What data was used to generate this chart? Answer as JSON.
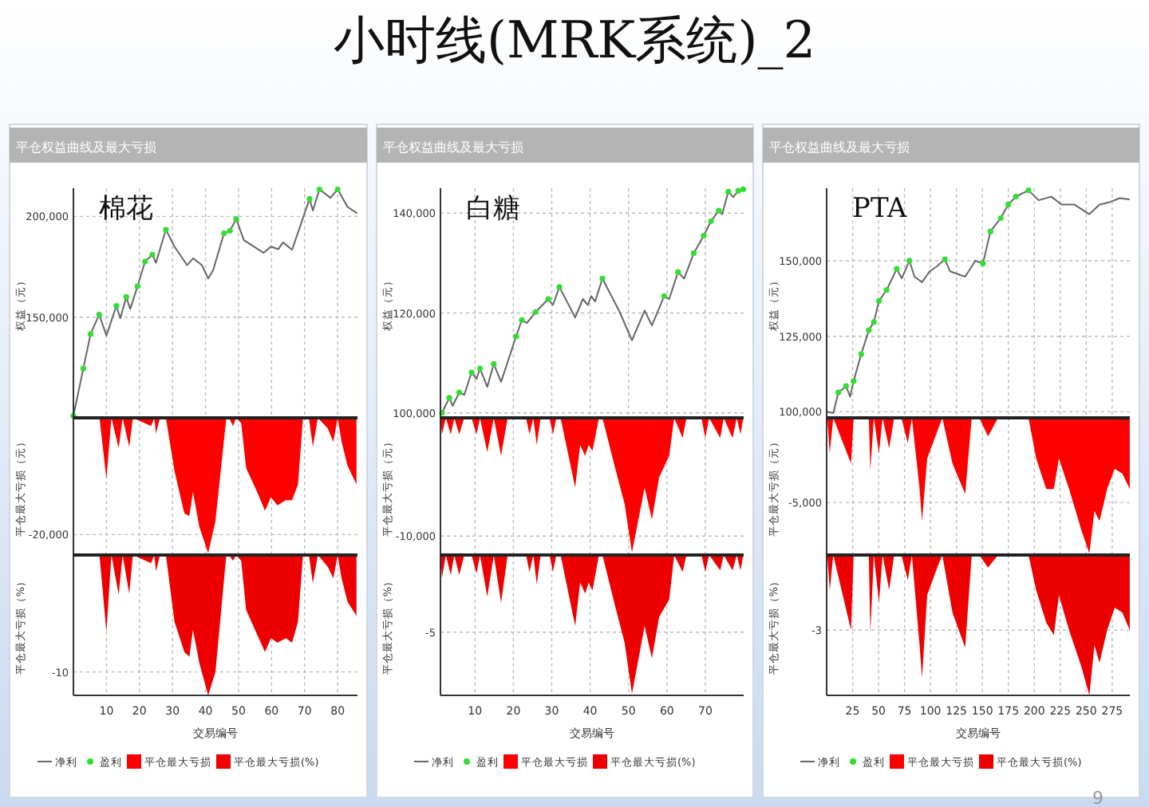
{
  "chart_data": [
    {
      "type": "line",
      "title": "平仓权益曲线及最大亏损",
      "subtitle": "棉花",
      "ylabel": "权益（元）",
      "legend": "bottom",
      "annotations": [
        "小时线(MRK系统)_2"
      ],
      "xlim": [
        0,
        86
      ],
      "xticks": [
        10,
        20,
        30,
        40,
        50,
        60,
        70,
        80
      ],
      "ylim": [
        100000,
        214000
      ],
      "yticks": [
        {
          "value": 150000,
          "label": "150,000"
        },
        {
          "value": 200000,
          "label": "200,000"
        }
      ],
      "grid": true,
      "tick_labels": "y",
      "series": [
        {
          "name": "净利",
          "color": "#666666",
          "x": [
            0,
            3,
            5.2,
            7.8,
            10,
            13,
            14.2,
            16,
            17.2,
            19.4,
            21.7,
            23.9,
            25,
            28,
            30.6,
            34.4,
            36.3,
            38.9,
            40.8,
            42.3,
            45.6,
            47.4,
            49.3,
            51.6,
            57.6,
            59.8,
            62,
            63.5,
            66.2,
            71.5,
            72.5,
            74.5,
            77.8,
            80,
            83,
            85.7
          ],
          "values": [
            101000,
            124500,
            141600,
            151300,
            140800,
            155600,
            149500,
            160000,
            154000,
            165300,
            177600,
            181000,
            177000,
            193400,
            185000,
            175800,
            179200,
            175800,
            169200,
            173200,
            191600,
            192900,
            198700,
            188200,
            181900,
            185000,
            183700,
            187100,
            183400,
            208700,
            202900,
            213400,
            209200,
            213400,
            204700,
            201800
          ]
        },
        {
          "name": "盈利",
          "type": "scatter",
          "color": "#33dd33",
          "x": [
            0,
            3,
            5.2,
            7.8,
            13,
            16,
            19.4,
            21.7,
            23.9,
            28,
            45.6,
            47.4,
            49.3,
            71.5,
            74.5,
            80
          ],
          "values": [
            101000,
            124500,
            141600,
            151300,
            155600,
            160000,
            165300,
            177600,
            181000,
            193400,
            191600,
            192900,
            198700,
            208700,
            213400,
            213400
          ]
        }
      ]
    },
    {
      "type": "area",
      "ylabel": "平仓最大亏损（元）",
      "legend": "bottom",
      "xlim": [
        0,
        86
      ],
      "xticks": [
        10,
        20,
        30,
        40,
        50,
        60,
        70,
        80
      ],
      "ylim": [
        -23500,
        0
      ],
      "yticks": [
        {
          "value": -20000,
          "label": "-20,000"
        }
      ],
      "grid": true,
      "tick_labels": "y",
      "series": [
        {
          "name": "平仓最大亏损",
          "color": "#ff0000",
          "x": [
            0,
            7.9,
            10,
            11.5,
            13.7,
            14.9,
            16.9,
            18,
            23.5,
            24.5,
            25,
            26.2,
            28,
            30.6,
            33.6,
            35.1,
            36.2,
            38.1,
            40.8,
            43,
            46.3,
            47.1,
            48.3,
            49.3,
            50.8,
            52.3,
            55.3,
            58,
            59.8,
            61.8,
            64.3,
            66.2,
            68,
            69.5,
            71.3,
            72.5,
            74,
            77,
            78.7,
            80,
            81.2,
            83,
            85.7
          ],
          "values": [
            0,
            0,
            -10500,
            0,
            -5200,
            0,
            -5000,
            0,
            -1400,
            0,
            -2700,
            0,
            0,
            -9100,
            -16400,
            -16800,
            -12700,
            -18600,
            -23200,
            -17700,
            0,
            0,
            -1400,
            0,
            -900,
            -8600,
            -12300,
            -15900,
            -13600,
            -15000,
            -14100,
            -14100,
            -11400,
            0,
            0,
            -5000,
            0,
            -1800,
            -4100,
            0,
            -4100,
            -8200,
            -11400
          ]
        }
      ]
    },
    {
      "type": "area",
      "ylabel": "平仓最大亏损（%）",
      "xlabel": "交易编号",
      "legend": "bottom",
      "xlim": [
        0,
        86
      ],
      "xticks": [
        10,
        20,
        30,
        40,
        50,
        60,
        70,
        80
      ],
      "ylim": [
        -12,
        0
      ],
      "yticks": [
        -10
      ],
      "grid": true,
      "series": [
        {
          "name": "平仓最大亏损(%)",
          "color": "#ee0000",
          "x": [
            0,
            7.9,
            10,
            11.5,
            13.7,
            14.9,
            16.9,
            18,
            23.5,
            24.5,
            25,
            26.2,
            28,
            30.6,
            33.6,
            35.1,
            36.2,
            38.1,
            40.8,
            43,
            46.3,
            47.1,
            48.3,
            49.3,
            50.8,
            52.3,
            55.3,
            58,
            59.8,
            61.8,
            64.3,
            66.2,
            68,
            69.5,
            71.3,
            72.5,
            74,
            77,
            78.7,
            80,
            81.2,
            83,
            85.7
          ],
          "values": [
            0,
            0,
            -6.6,
            0,
            -3.4,
            0,
            -3.3,
            0,
            -0.7,
            0,
            -1.4,
            0,
            0,
            -5.7,
            -8.3,
            -8.7,
            -6.4,
            -9.2,
            -12,
            -10,
            0,
            0,
            -0.5,
            0,
            -0.5,
            -4.7,
            -6.6,
            -8.3,
            -7.1,
            -7.5,
            -7.1,
            -7.5,
            -5.7,
            0,
            0,
            -2.4,
            0,
            -1,
            -2,
            0,
            -2,
            -4,
            -5.2
          ]
        }
      ]
    },
    {
      "type": "line",
      "title": "平仓权益曲线及最大亏损",
      "subtitle": "白糖",
      "ylabel": "权益（元）",
      "legend": "bottom",
      "xlim": [
        1,
        80
      ],
      "xticks": [
        10,
        20,
        30,
        40,
        50,
        60,
        70
      ],
      "ylim": [
        99000,
        145000
      ],
      "yticks": [
        {
          "value": 100000,
          "label": "100,000"
        },
        {
          "value": 120000,
          "label": "120,000"
        },
        {
          "value": 140000,
          "label": "140,000"
        }
      ],
      "grid": true,
      "tick_labels": "y",
      "series": [
        {
          "name": "净利",
          "color": "#666666",
          "x": [
            1.4,
            3.3,
            4.2,
            5.9,
            7.2,
            9.1,
            10.4,
            11.3,
            13.2,
            14.9,
            16.8,
            20.7,
            22.2,
            23.5,
            25.8,
            29.1,
            30.3,
            32,
            36.1,
            38.1,
            39.4,
            40.3,
            41.3,
            43.2,
            47.7,
            50.9,
            54.2,
            56.1,
            59.3,
            60.6,
            62.9,
            64.5,
            67,
            69.6,
            71.5,
            73.5,
            74.4,
            76,
            77.3,
            78.6,
            79.9
          ],
          "values": [
            100000,
            103000,
            101400,
            104100,
            103600,
            108100,
            106800,
            108900,
            105200,
            109800,
            106200,
            115300,
            118600,
            118000,
            120200,
            122800,
            121600,
            125200,
            119100,
            122800,
            121600,
            123400,
            122300,
            126900,
            120200,
            114500,
            120500,
            117500,
            123400,
            122800,
            128200,
            126900,
            132000,
            135500,
            138400,
            140500,
            139800,
            144300,
            143200,
            144500,
            144800
          ]
        },
        {
          "name": "盈利",
          "type": "scatter",
          "color": "#33dd33",
          "x": [
            1.4,
            3.3,
            5.9,
            9.1,
            11.3,
            14.9,
            20.7,
            22.2,
            25.8,
            29.1,
            32,
            43.2,
            59.3,
            62.9,
            67,
            69.6,
            71.5,
            73.5,
            76,
            78.6,
            79.9
          ],
          "values": [
            100000,
            103000,
            104100,
            108100,
            108900,
            109800,
            115300,
            118600,
            120200,
            122800,
            125200,
            126900,
            123400,
            128200,
            132000,
            135500,
            138400,
            140500,
            144300,
            144500,
            144800
          ]
        }
      ]
    },
    {
      "type": "area",
      "ylabel": "平仓最大亏损（元）",
      "legend": "bottom",
      "xlim": [
        1,
        80
      ],
      "xticks": [
        10,
        20,
        30,
        40,
        50,
        60,
        70
      ],
      "ylim": [
        -11600,
        0
      ],
      "yticks": [
        {
          "value": -10000,
          "label": "-10,000"
        }
      ],
      "grid": true,
      "tick_labels": "y",
      "series": [
        {
          "name": "平仓最大亏损",
          "color": "#ff0000",
          "x": [
            1,
            1.4,
            2.4,
            3.7,
            4.6,
            5.9,
            7.2,
            9.1,
            10.4,
            11.3,
            13.2,
            14.9,
            16.8,
            18.5,
            23.3,
            24.2,
            25.2,
            26.1,
            27.1,
            29.4,
            30.3,
            31.2,
            32.3,
            36.1,
            37.4,
            38.7,
            39.6,
            40.6,
            42.3,
            43.2,
            46.4,
            49,
            50.9,
            54.2,
            56.1,
            58,
            60.6,
            61.9,
            64.1,
            65.1,
            69,
            70,
            71,
            73.9,
            74.8,
            77.1,
            78.2,
            79.2,
            79.9
          ],
          "values": [
            0,
            -1400,
            0,
            -1400,
            0,
            -1400,
            0,
            0,
            -1400,
            0,
            -2900,
            0,
            -3200,
            0,
            0,
            -1400,
            0,
            -2300,
            0,
            0,
            -1400,
            0,
            0,
            -5900,
            -2300,
            -3200,
            -2300,
            -2800,
            0,
            0,
            -4100,
            -7300,
            -11400,
            -5900,
            -8600,
            -5000,
            -3200,
            0,
            -1700,
            0,
            0,
            -1700,
            0,
            -1700,
            0,
            -1700,
            0,
            -1400,
            0
          ]
        }
      ]
    },
    {
      "type": "area",
      "ylabel": "平仓最大亏损（%）",
      "xlabel": "交易编号",
      "legend": "bottom",
      "xlim": [
        1,
        80
      ],
      "xticks": [
        10,
        20,
        30,
        40,
        50,
        60,
        70
      ],
      "ylim": [
        -9.1,
        0
      ],
      "yticks": [
        -5
      ],
      "grid": true,
      "series": [
        {
          "name": "平仓最大亏损(%)",
          "color": "#ee0000",
          "x": [
            1,
            1.4,
            2.4,
            3.7,
            4.6,
            5.9,
            7.2,
            9.1,
            10.4,
            11.3,
            13.2,
            14.9,
            16.8,
            18.5,
            23.3,
            24.2,
            25.2,
            26.1,
            27.1,
            29.4,
            30.3,
            31.2,
            32.3,
            36.1,
            37.4,
            38.7,
            39.6,
            40.6,
            42.3,
            43.2,
            46.4,
            49,
            50.9,
            54.2,
            56.1,
            58,
            60.6,
            61.9,
            64.1,
            65.1,
            69,
            70,
            71,
            73.9,
            74.8,
            77.1,
            78.2,
            79.2,
            79.9
          ],
          "values": [
            0,
            -1.5,
            0,
            -1.3,
            0,
            -1.3,
            0,
            0,
            -1.2,
            0,
            -2.7,
            0,
            -3.1,
            0,
            0,
            -1.1,
            0,
            -1.9,
            0,
            0,
            -1.1,
            0,
            0,
            -4.6,
            -1.8,
            -2.5,
            -1.8,
            -2.3,
            0,
            0,
            -3.2,
            -5.7,
            -9,
            -4.6,
            -6.7,
            -4,
            -2.9,
            0,
            -1.1,
            0,
            0,
            -1.1,
            0,
            -1,
            0,
            -1,
            0,
            -1,
            0
          ]
        }
      ]
    },
    {
      "type": "line",
      "title": "平仓权益曲线及最大亏损",
      "subtitle": "PTA",
      "ylabel": "权益（元）",
      "legend": "bottom",
      "xlim": [
        0,
        292
      ],
      "xticks": [
        25,
        50,
        75,
        100,
        125,
        150,
        175,
        200,
        225,
        250,
        275
      ],
      "ylim": [
        98000,
        174000
      ],
      "yticks": [
        {
          "value": 100000,
          "label": "100,000"
        },
        {
          "value": 125000,
          "label": "125,000"
        },
        {
          "value": 150000,
          "label": "150,000"
        }
      ],
      "grid": true,
      "tick_labels": "y",
      "series": [
        {
          "name": "净利",
          "color": "#666666",
          "x": [
            0.6,
            6.4,
            11.3,
            18.7,
            22.6,
            26,
            33.3,
            40.6,
            45.5,
            50.4,
            57.7,
            67.5,
            72.4,
            79.7,
            84.6,
            91.9,
            99.2,
            106.5,
            113.9,
            118.8,
            133.4,
            143.2,
            150.5,
            157.8,
            167.6,
            174.9,
            182.2,
            194.4,
            204.2,
            216.4,
            226.2,
            238.4,
            253,
            262.8,
            272.6,
            282.3,
            291.1
          ],
          "values": [
            100000,
            99600,
            106400,
            108500,
            105000,
            110200,
            119100,
            127000,
            129700,
            136700,
            140300,
            147300,
            144200,
            150000,
            144700,
            142900,
            146500,
            148200,
            150500,
            146500,
            144700,
            150000,
            149100,
            159700,
            164100,
            168600,
            171200,
            173300,
            170000,
            171200,
            168600,
            168600,
            165400,
            168600,
            169400,
            170700,
            170300
          ]
        },
        {
          "name": "盈利",
          "type": "scatter",
          "color": "#33dd33",
          "x": [
            11.3,
            18.7,
            26,
            33.3,
            40.6,
            45.5,
            50.4,
            57.7,
            67.5,
            79.7,
            113.9,
            150.5,
            157.8,
            167.6,
            174.9,
            182.2,
            194.4
          ],
          "values": [
            106400,
            108500,
            110200,
            119100,
            127000,
            129700,
            136700,
            140300,
            147300,
            150000,
            150500,
            149100,
            159700,
            164100,
            168600,
            171200,
            173300
          ]
        }
      ]
    },
    {
      "type": "area",
      "ylabel": "平仓最大亏损（元）",
      "legend": "bottom",
      "xlim": [
        0,
        292
      ],
      "xticks": [
        25,
        50,
        75,
        100,
        125,
        150,
        175,
        200,
        225,
        250,
        275
      ],
      "ylim": [
        -8100,
        0
      ],
      "yticks": [
        {
          "value": -5000,
          "label": "-5,000"
        }
      ],
      "grid": true,
      "tick_labels": "y",
      "series": [
        {
          "name": "平仓最大亏损",
          "color": "#ff0000",
          "x": [
            0.6,
            3,
            6.4,
            23.5,
            26,
            40.6,
            42.1,
            45.5,
            50.4,
            53.9,
            60.2,
            65,
            72,
            78.2,
            82.1,
            89.5,
            91.9,
            96.8,
            106.5,
            111.4,
            121.2,
            133.4,
            139.7,
            147,
            155.4,
            165.1,
            194.4,
            201.8,
            211.5,
            218.8,
            223.7,
            233.5,
            245.7,
            253,
            257.9,
            262.8,
            270.1,
            277.4,
            284.8,
            291.9
          ],
          "values": [
            0,
            -2100,
            0,
            -2700,
            0,
            0,
            -3100,
            0,
            -2100,
            0,
            -1800,
            0,
            0,
            -1500,
            0,
            -4200,
            -6100,
            -2400,
            -800,
            0,
            -2700,
            -4500,
            0,
            0,
            -1100,
            0,
            0,
            -2400,
            -4200,
            -4200,
            -2400,
            -4200,
            -6700,
            -8000,
            -5500,
            -6100,
            -4200,
            -3000,
            -3300,
            -4200
          ]
        }
      ]
    },
    {
      "type": "area",
      "ylabel": "平仓最大亏损（%）",
      "xlabel": "交易编号",
      "legend": "bottom",
      "annotations": [
        "9"
      ],
      "xlim": [
        0,
        292
      ],
      "xticks": [
        25,
        50,
        75,
        100,
        125,
        150,
        175,
        200,
        225,
        250,
        275
      ],
      "ylim": [
        -5.6,
        0
      ],
      "yticks": [
        -3
      ],
      "grid": true,
      "series": [
        {
          "name": "平仓最大亏损(%)",
          "color": "#ee0000",
          "x": [
            0.6,
            3,
            6.4,
            23.5,
            26,
            40.6,
            42.1,
            45.5,
            50.4,
            53.9,
            60.2,
            65,
            72,
            78.2,
            82.1,
            89.5,
            91.9,
            96.8,
            106.5,
            111.4,
            121.2,
            133.4,
            139.7,
            147,
            155.4,
            165.1,
            194.4,
            201.8,
            211.5,
            218.8,
            223.7,
            233.5,
            245.7,
            253,
            257.9,
            262.8,
            270.1,
            277.4,
            284.8,
            291.9
          ],
          "values": [
            0,
            -1.4,
            0,
            -3,
            0,
            0,
            -3.1,
            0,
            -1.9,
            0,
            -1.4,
            0,
            0,
            -1,
            0,
            -3.6,
            -4.9,
            -1.6,
            -0.5,
            0,
            -2.3,
            -3.7,
            0,
            0,
            -0.5,
            0,
            0,
            -1.4,
            -2.7,
            -3.2,
            -1.6,
            -3,
            -4.5,
            -5.6,
            -3.6,
            -4.3,
            -3,
            -2.1,
            -2.3,
            -3
          ]
        }
      ]
    }
  ]
}
